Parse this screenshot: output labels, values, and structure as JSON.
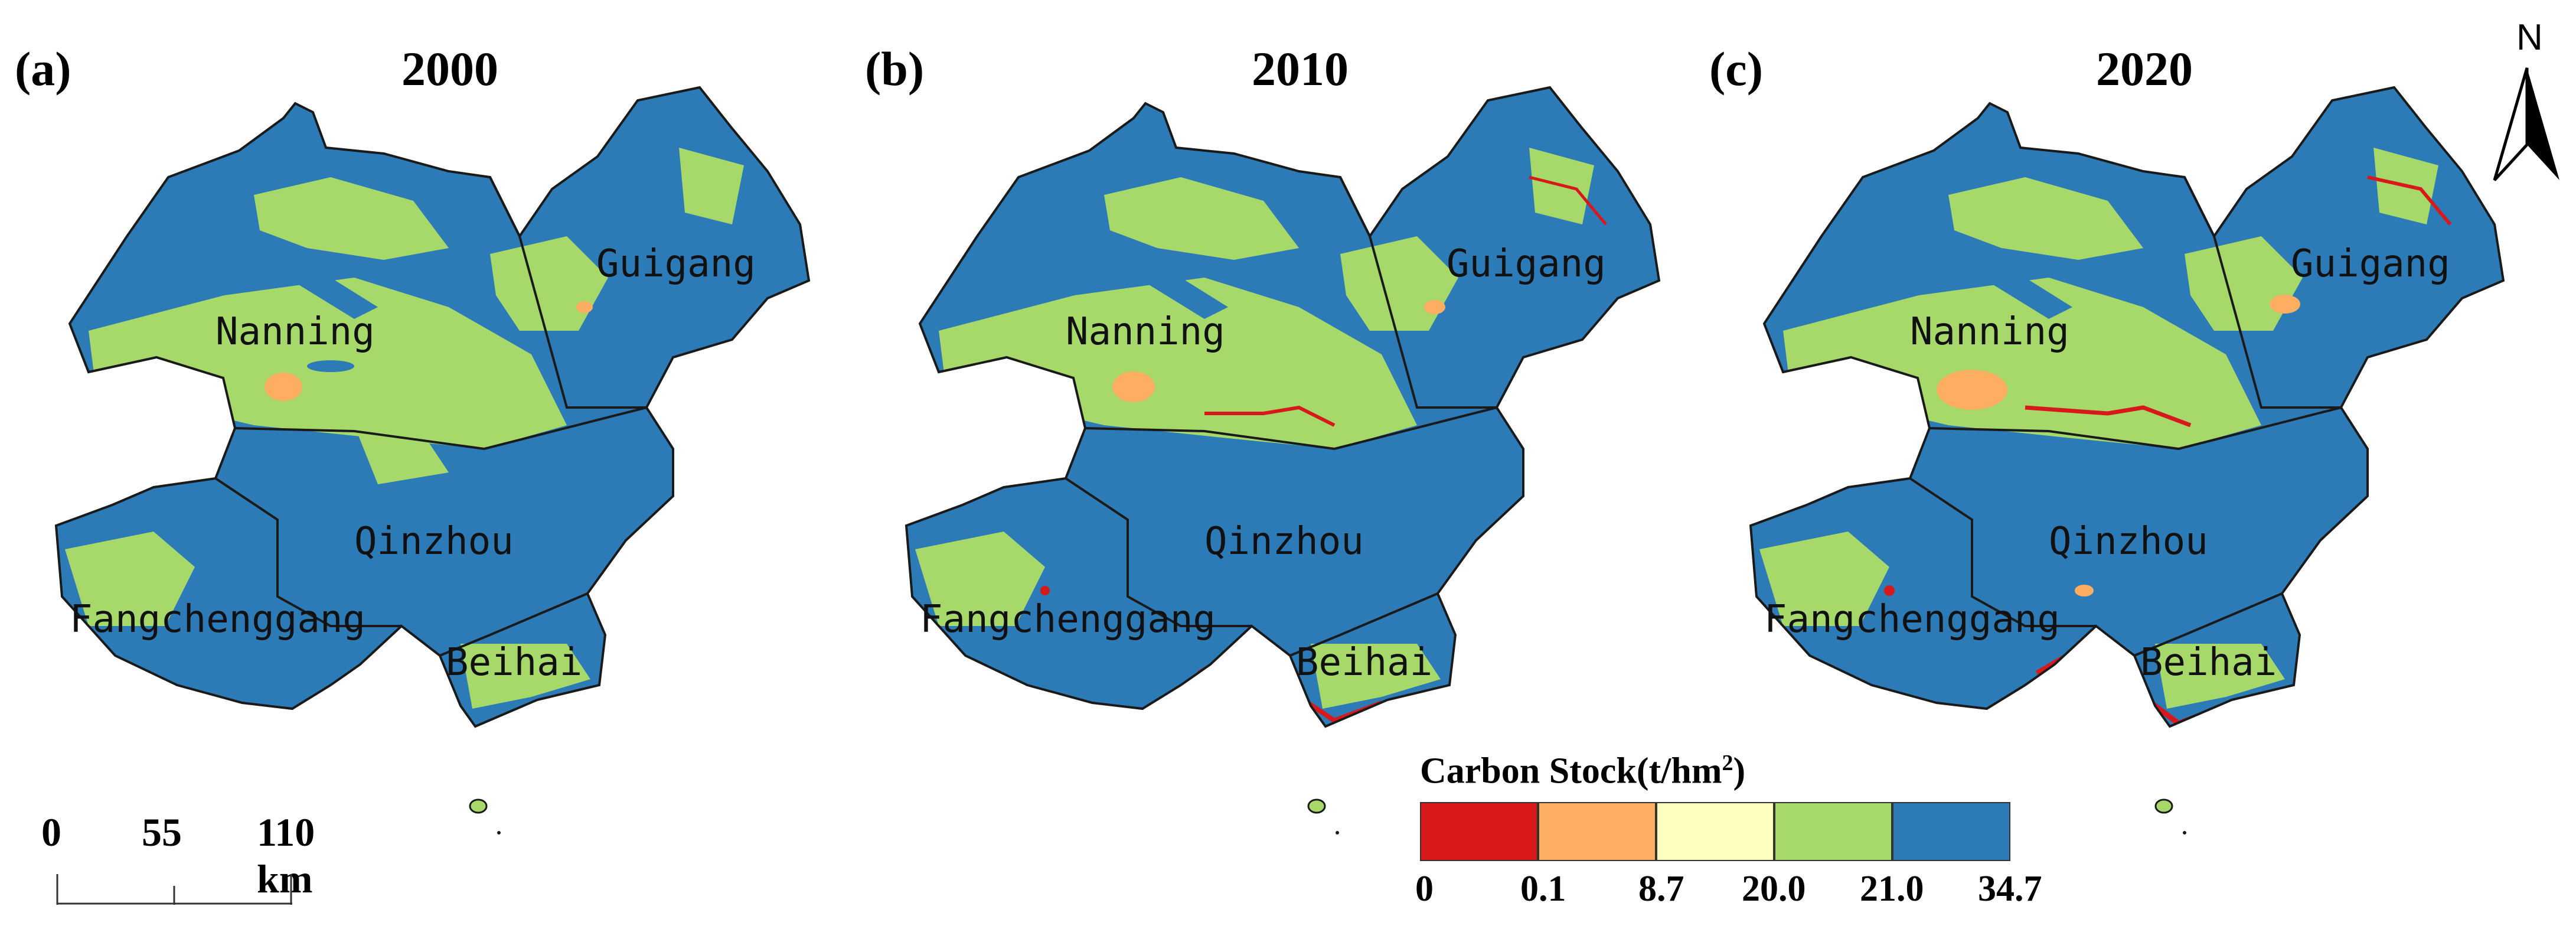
{
  "panels": [
    {
      "label": "(a)",
      "year": "2000"
    },
    {
      "label": "(b)",
      "year": "2010"
    },
    {
      "label": "(c)",
      "year": "2020"
    }
  ],
  "cities": {
    "nanning": "Nanning",
    "guigang": "Guigang",
    "qinzhou": "Qinzhou",
    "fangchenggang": "Fangchenggang",
    "beihai": "Beihai"
  },
  "north_arrow": {
    "label": "N"
  },
  "scale_bar": {
    "ticks": [
      "0",
      "55",
      "110 km"
    ]
  },
  "legend": {
    "title": "Carbon Stock(t/hm",
    "title_sup": "2",
    "title_close": ")",
    "classes": [
      {
        "color": "#d7191c"
      },
      {
        "color": "#fdae61"
      },
      {
        "color": "#ffffbf"
      },
      {
        "color": "#a6d96a"
      },
      {
        "color": "#2c7bb6"
      }
    ],
    "ticks": [
      "0",
      "0.1",
      "8.7",
      "20.0",
      "21.0",
      "34.7"
    ]
  },
  "colors": {
    "high": "#2c7bb6",
    "mid_high": "#a6d96a",
    "mid": "#ffffbf",
    "low": "#fdae61",
    "lowest": "#d7191c",
    "boundary": "#1a1a1a"
  }
}
